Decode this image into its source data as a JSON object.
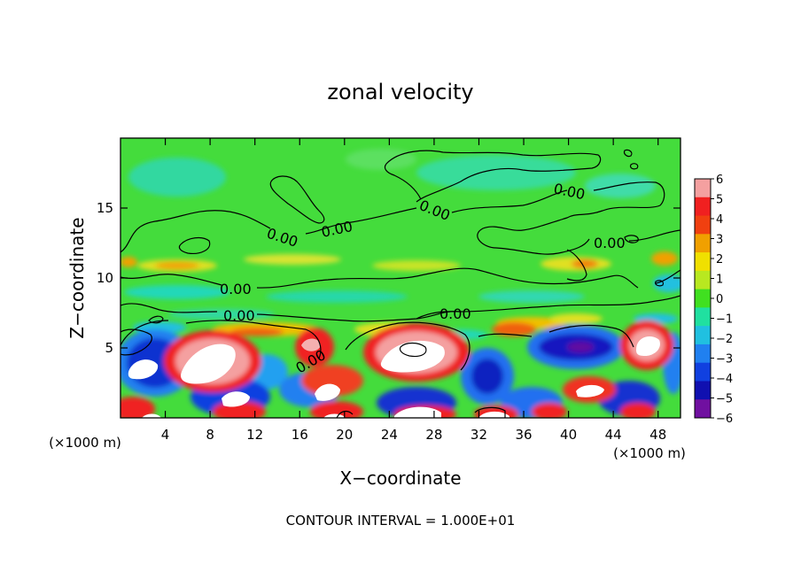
{
  "chart_data": {
    "type": "heatmap",
    "title": "zonal velocity",
    "xlabel": "X−coordinate",
    "ylabel": "Z−coordinate",
    "x_unit_left": "(×1000 m)",
    "x_unit_right": "(×1000 m)",
    "xlim": [
      0,
      50
    ],
    "ylim": [
      0,
      20
    ],
    "x_ticks": [
      4,
      8,
      12,
      16,
      20,
      24,
      28,
      32,
      36,
      40,
      44,
      48
    ],
    "y_ticks": [
      5,
      10,
      15
    ],
    "contour_label": "0.00",
    "contour_interval_text": "CONTOUR INTERVAL = 1.000E+01",
    "colorbar": {
      "levels": [
        6,
        5,
        4,
        3,
        2,
        1,
        0,
        -1,
        -2,
        -3,
        -4,
        -5,
        -6
      ],
      "level_labels": [
        "6",
        "5",
        "4",
        "3",
        "2",
        "1",
        "0",
        "−1",
        "−2",
        "−3",
        "−4",
        "−5",
        "−6"
      ],
      "colors": [
        "#f4a0a0",
        "#f02020",
        "#f04010",
        "#f0a000",
        "#f0e000",
        "#b8e820",
        "#40e020",
        "#20e0a0",
        "#20c0e0",
        "#2080f0",
        "#1040e0",
        "#1010b0",
        "#7010a0"
      ]
    },
    "grid": false,
    "legend_placement": "right"
  }
}
